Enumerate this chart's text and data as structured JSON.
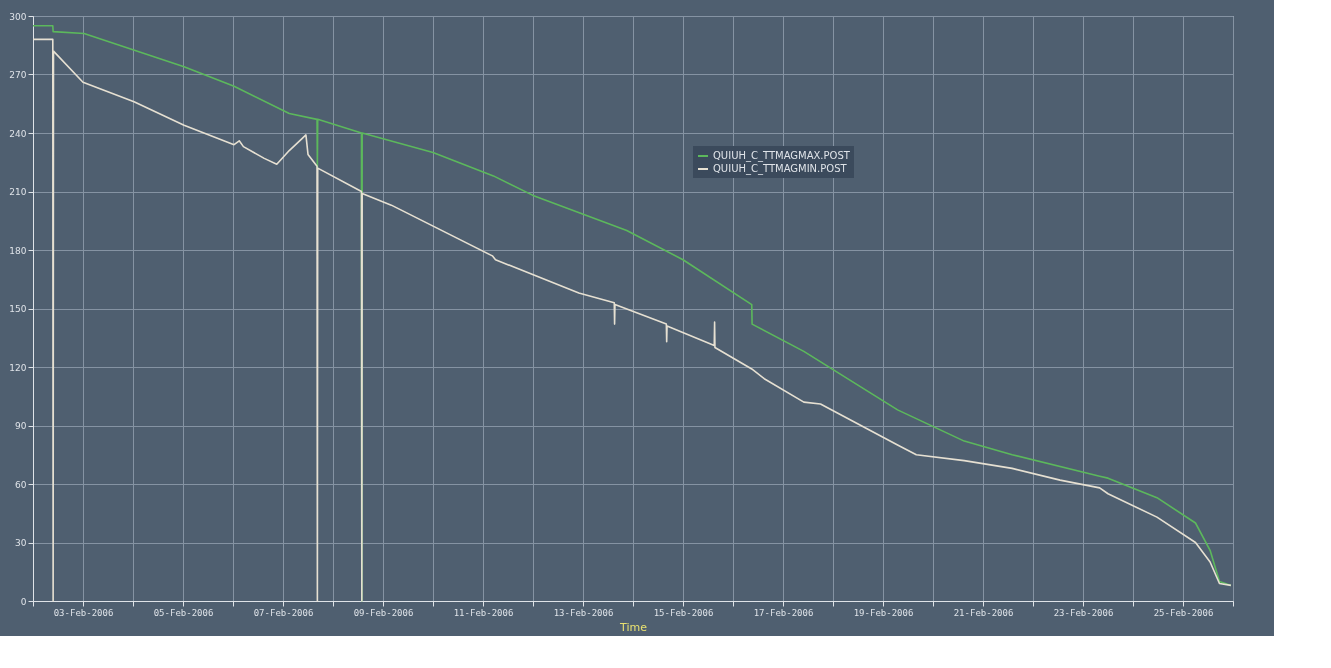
{
  "chart_data": {
    "type": "line",
    "xlabel": "Time",
    "xlim": [
      "2006-02-02T00:00",
      "2006-02-26T00:00"
    ],
    "xticks": [
      {
        "value": "2006-02-02T00:00",
        "label": null
      },
      {
        "value": "2006-02-03T00:00",
        "label": "03-Feb-2006"
      },
      {
        "value": "2006-02-04T00:00",
        "label": null
      },
      {
        "value": "2006-02-05T00:00",
        "label": "05-Feb-2006"
      },
      {
        "value": "2006-02-06T00:00",
        "label": null
      },
      {
        "value": "2006-02-07T00:00",
        "label": "07-Feb-2006"
      },
      {
        "value": "2006-02-08T00:00",
        "label": null
      },
      {
        "value": "2006-02-09T00:00",
        "label": "09-Feb-2006"
      },
      {
        "value": "2006-02-10T00:00",
        "label": null
      },
      {
        "value": "2006-02-11T00:00",
        "label": "11-Feb-2006"
      },
      {
        "value": "2006-02-12T00:00",
        "label": null
      },
      {
        "value": "2006-02-13T00:00",
        "label": "13-Feb-2006"
      },
      {
        "value": "2006-02-14T00:00",
        "label": null
      },
      {
        "value": "2006-02-15T00:00",
        "label": "15-Feb-2006"
      },
      {
        "value": "2006-02-16T00:00",
        "label": null
      },
      {
        "value": "2006-02-17T00:00",
        "label": "17-Feb-2006"
      },
      {
        "value": "2006-02-18T00:00",
        "label": null
      },
      {
        "value": "2006-02-19T00:00",
        "label": "19-Feb-2006"
      },
      {
        "value": "2006-02-20T00:00",
        "label": null
      },
      {
        "value": "2006-02-21T00:00",
        "label": "21-Feb-2006"
      },
      {
        "value": "2006-02-22T00:00",
        "label": null
      },
      {
        "value": "2006-02-23T00:00",
        "label": "23-Feb-2006"
      },
      {
        "value": "2006-02-24T00:00",
        "label": null
      },
      {
        "value": "2006-02-25T00:00",
        "label": "25-Feb-2006"
      },
      {
        "value": "2006-02-26T00:00",
        "label": null
      }
    ],
    "ylim": [
      0,
      300
    ],
    "yticks": [
      0,
      30,
      60,
      90,
      120,
      150,
      180,
      210,
      240,
      270,
      300
    ],
    "grid": true,
    "legend": "center",
    "marker": "none",
    "line_style": "solid",
    "series": [
      {
        "name": "QUIUH_C_TTMAGMAX.POST",
        "color": "#5cb85c",
        "x": [
          "2006-02-02T00:00",
          "2006-02-02T09:30",
          "2006-02-02T09:40",
          "2006-02-03T00:30",
          "2006-02-05T00:30",
          "2006-02-06T00:30",
          "2006-02-07T03:00",
          "2006-02-07T16:20",
          "2006-02-07T16:30",
          "2006-02-07T16:40",
          "2006-02-08T13:40",
          "2006-02-08T13:50",
          "2006-02-08T14:00",
          "2006-02-10T00:00",
          "2006-02-11T05:00",
          "2006-02-12T00:00",
          "2006-02-13T21:00",
          "2006-02-15T00:00",
          "2006-02-16T09:00",
          "2006-02-16T09:10",
          "2006-02-17T10:00",
          "2006-02-19T07:00",
          "2006-02-20T15:00",
          "2006-02-21T14:00",
          "2006-02-23T08:00",
          "2006-02-23T12:00",
          "2006-02-24T11:30",
          "2006-02-25T06:00",
          "2006-02-25T13:00",
          "2006-02-25T17:30",
          "2006-02-25T23:00"
        ],
        "values": [
          295,
          295,
          292,
          291,
          274,
          264,
          250,
          247,
          222,
          247,
          240,
          0,
          240,
          230,
          218,
          208,
          190,
          175,
          152,
          142,
          128,
          98,
          82,
          75,
          64,
          63,
          53,
          40,
          26,
          10,
          8
        ]
      },
      {
        "name": "QUIUH_C_TTMAGMIN.POST",
        "color": "#e6e0d2",
        "x": [
          "2006-02-02T00:00",
          "2006-02-02T09:30",
          "2006-02-02T09:40",
          "2006-02-02T09:50",
          "2006-02-03T00:00",
          "2006-02-04T00:30",
          "2006-02-05T00:30",
          "2006-02-06T00:30",
          "2006-02-06T03:00",
          "2006-02-06T05:00",
          "2006-02-06T15:00",
          "2006-02-06T21:00",
          "2006-02-07T03:00",
          "2006-02-07T09:00",
          "2006-02-07T11:00",
          "2006-02-07T12:00",
          "2006-02-07T16:20",
          "2006-02-07T16:30",
          "2006-02-07T16:40",
          "2006-02-08T13:40",
          "2006-02-08T13:50",
          "2006-02-08T14:00",
          "2006-02-09T04:00",
          "2006-02-11T04:30",
          "2006-02-11T06:00",
          "2006-02-12T22:00",
          "2006-02-13T15:00",
          "2006-02-13T15:10",
          "2006-02-13T15:20",
          "2006-02-14T16:00",
          "2006-02-14T16:10",
          "2006-02-14T16:20",
          "2006-02-15T15:00",
          "2006-02-15T15:10",
          "2006-02-15T15:20",
          "2006-02-16T09:00",
          "2006-02-16T15:00",
          "2006-02-17T10:00",
          "2006-02-17T18:00",
          "2006-02-19T07:00",
          "2006-02-19T16:00",
          "2006-02-20T15:00",
          "2006-02-21T14:00",
          "2006-02-22T13:00",
          "2006-02-23T08:00",
          "2006-02-23T12:00",
          "2006-02-24T11:30",
          "2006-02-25T06:00",
          "2006-02-25T13:00",
          "2006-02-25T17:30",
          "2006-02-25T23:00"
        ],
        "values": [
          288,
          288,
          0,
          282,
          266,
          256,
          244,
          234,
          236,
          233,
          227,
          224,
          231,
          237,
          239,
          229,
          223,
          0,
          222,
          210,
          0,
          209,
          203,
          177,
          175,
          158,
          153,
          142,
          152,
          142,
          133,
          141,
          131,
          143,
          130,
          119,
          114,
          102,
          101,
          80,
          75,
          72,
          68,
          62,
          58,
          55,
          43,
          30,
          20,
          9,
          8
        ]
      }
    ]
  }
}
